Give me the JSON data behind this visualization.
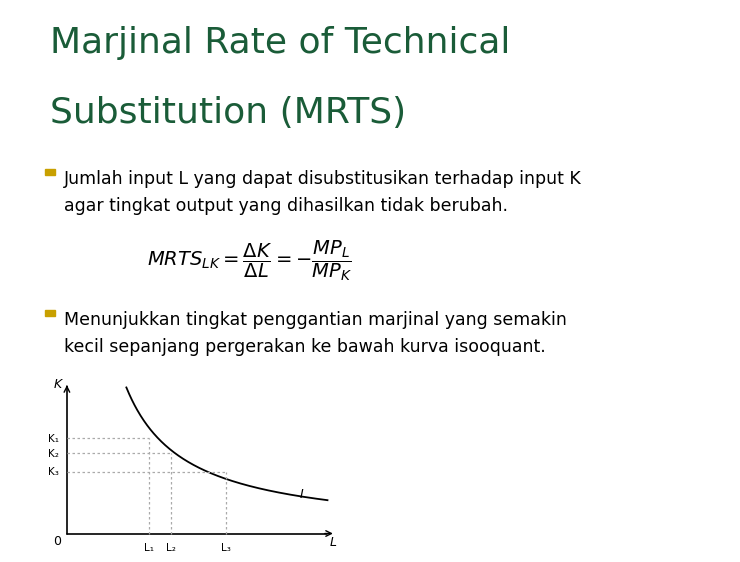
{
  "title_line1": "Marjinal Rate of Technical",
  "title_line2": "Substitution (MRTS)",
  "title_color": "#1a5c38",
  "title_fontsize": 26,
  "bg_color": "#ffffff",
  "bullet_color": "#c8a000",
  "bullet1_line1": "Jumlah input L yang dapat disubstitusikan terhadap input K",
  "bullet1_line2": "agar tingkat output yang dihasilkan tidak berubah.",
  "bullet2_line1": "Menunjukkan tingkat penggantian marjinal yang semakin",
  "bullet2_line2": "kecil sepanjang pergerakan ke bawah kurva isooquant.",
  "text_color": "#000000",
  "text_fontsize": 12.5,
  "graph_x_label": "L",
  "graph_y_label": "K",
  "graph_origin_label": "0",
  "graph_L1": "L₁",
  "graph_L2": "L₂",
  "graph_L3": "L₃",
  "graph_K1": "K₁",
  "graph_K2": "K₂",
  "graph_K3": "K₃",
  "graph_curve_label": "I",
  "curve_color": "#000000",
  "dashed_color": "#aaaaaa",
  "axis_color": "#000000",
  "L1": 3.0,
  "K1": 6.2,
  "L2": 3.8,
  "K2": 5.2,
  "L3": 5.8,
  "K3": 4.0
}
